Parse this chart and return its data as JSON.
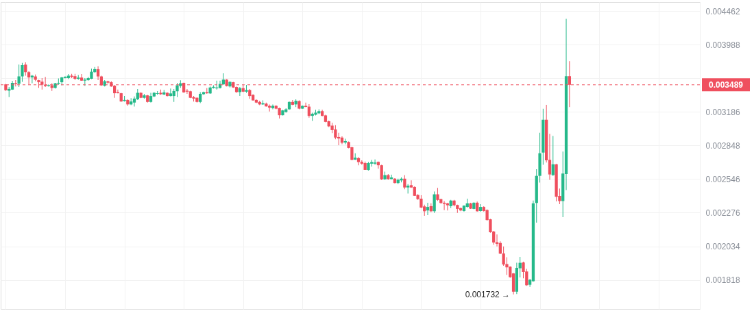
{
  "chart_data": {
    "type": "candlestick",
    "categories": [
      null,
      null,
      null,
      null,
      null,
      null,
      null,
      null,
      null,
      null,
      null,
      null,
      null,
      null,
      null,
      null,
      null,
      null,
      null,
      null,
      null,
      null,
      null,
      null,
      null,
      null,
      null,
      null,
      null,
      null,
      null,
      null,
      null,
      null,
      null,
      null,
      null,
      null,
      null,
      null,
      null,
      null,
      null,
      null,
      null,
      null,
      null,
      null,
      null,
      null,
      null,
      null,
      null,
      null,
      null,
      null,
      null,
      null,
      null,
      null,
      null,
      null,
      null,
      null,
      null,
      null,
      null,
      null,
      null,
      null,
      null,
      null,
      null,
      null,
      null,
      null,
      null,
      null,
      null,
      null,
      null,
      null,
      null,
      null,
      null,
      null,
      null,
      null,
      null,
      null,
      null,
      null,
      null,
      null,
      null,
      null,
      null,
      null,
      null,
      null,
      null,
      null,
      null,
      null,
      null,
      null,
      null,
      null,
      null,
      null,
      null,
      null,
      null,
      null,
      null,
      null,
      null,
      null,
      null,
      null,
      null,
      null,
      null,
      null,
      null,
      null,
      null,
      null,
      null,
      null,
      null,
      null,
      null,
      null,
      null,
      null,
      null,
      null,
      null,
      null,
      null,
      null,
      null,
      null,
      null,
      null,
      null,
      null,
      null,
      null,
      null,
      null,
      null,
      null,
      null,
      null,
      null,
      null,
      null,
      null,
      null,
      null,
      null,
      null,
      null,
      null,
      null,
      null,
      null,
      null,
      null,
      null,
      null,
      null,
      null,
      null,
      null,
      null,
      null,
      null,
      null,
      null,
      null,
      null,
      null,
      null,
      null,
      null,
      null,
      null,
      null,
      null,
      null,
      null,
      null,
      null,
      null,
      null,
      null,
      null,
      null,
      null,
      null,
      null,
      null,
      null,
      null,
      null,
      null,
      null
    ],
    "ohlc": [
      [
        0.003494,
        0.003499,
        0.003419,
        0.003427
      ],
      [
        0.003421,
        0.003463,
        0.003348,
        0.003441
      ],
      [
        0.003434,
        0.003536,
        0.003429,
        0.003512
      ],
      [
        0.003512,
        0.003543,
        0.00347,
        0.003502
      ],
      [
        0.003502,
        0.003732,
        0.003463,
        0.003588
      ],
      [
        0.003588,
        0.003755,
        0.003523,
        0.003726
      ],
      [
        0.003732,
        0.003761,
        0.003597,
        0.00364
      ],
      [
        0.00364,
        0.003651,
        0.003494,
        0.003576
      ],
      [
        0.003576,
        0.003606,
        0.003507,
        0.003597
      ],
      [
        0.003588,
        0.003611,
        0.003531,
        0.003548
      ],
      [
        0.003543,
        0.003548,
        0.003453,
        0.003519
      ],
      [
        0.003526,
        0.003568,
        0.003434,
        0.00349
      ],
      [
        0.00349,
        0.003582,
        0.003463,
        0.003475
      ],
      [
        0.003475,
        0.003494,
        0.003468,
        0.003485
      ],
      [
        0.003483,
        0.003507,
        0.003419,
        0.003453
      ],
      [
        0.003453,
        0.003512,
        0.003446,
        0.003507
      ],
      [
        0.003502,
        0.003563,
        0.00349,
        0.003512
      ],
      [
        0.003519,
        0.003582,
        0.003483,
        0.003576
      ],
      [
        0.003568,
        0.003591,
        0.003563,
        0.003582
      ],
      [
        0.003568,
        0.003617,
        0.003556,
        0.003597
      ],
      [
        0.003597,
        0.003619,
        0.003568,
        0.003582
      ],
      [
        0.003591,
        0.003619,
        0.003543,
        0.00356
      ],
      [
        0.00356,
        0.003606,
        0.003548,
        0.003574
      ],
      [
        0.003574,
        0.003617,
        0.003536,
        0.003538
      ],
      [
        0.003538,
        0.003568,
        0.003478,
        0.00355
      ],
      [
        0.003543,
        0.003582,
        0.003538,
        0.003568
      ],
      [
        0.00356,
        0.003683,
        0.003556,
        0.003645
      ],
      [
        0.00364,
        0.003703,
        0.003631,
        0.003677
      ],
      [
        0.003675,
        0.003712,
        0.003543,
        0.003588
      ],
      [
        0.003588,
        0.003597,
        0.003478,
        0.003483
      ],
      [
        0.003478,
        0.003543,
        0.00347,
        0.003531
      ],
      [
        0.003531,
        0.003538,
        0.003502,
        0.003514
      ],
      [
        0.003519,
        0.003531,
        0.003465,
        0.00347
      ],
      [
        0.003478,
        0.003487,
        0.003341,
        0.003392
      ],
      [
        0.003405,
        0.003434,
        0.00339,
        0.003392
      ],
      [
        0.003392,
        0.003397,
        0.003295,
        0.0033
      ],
      [
        0.003305,
        0.003361,
        0.0033,
        0.003317
      ],
      [
        0.003317,
        0.003324,
        0.003252,
        0.003268
      ],
      [
        0.003268,
        0.003337,
        0.003259,
        0.0033
      ],
      [
        0.003288,
        0.003356,
        0.003244,
        0.003332
      ],
      [
        0.003324,
        0.003439,
        0.003317,
        0.003397
      ],
      [
        0.003397,
        0.003402,
        0.003337,
        0.003341
      ],
      [
        0.003341,
        0.003385,
        0.003332,
        0.003368
      ],
      [
        0.003368,
        0.003373,
        0.003288,
        0.003295
      ],
      [
        0.003295,
        0.003397,
        0.003288,
        0.003361
      ],
      [
        0.003356,
        0.003405,
        0.003348,
        0.003397
      ],
      [
        0.003385,
        0.003417,
        0.003373,
        0.003392
      ],
      [
        0.003397,
        0.003434,
        0.003373,
        0.003381
      ],
      [
        0.003378,
        0.003429,
        0.00337,
        0.003402
      ],
      [
        0.003397,
        0.003402,
        0.003356,
        0.003361
      ],
      [
        0.003361,
        0.003446,
        0.003356,
        0.00339
      ],
      [
        0.003361,
        0.003439,
        0.003295,
        0.003417
      ],
      [
        0.003414,
        0.003512,
        0.003348,
        0.003483
      ],
      [
        0.003475,
        0.003541,
        0.003453,
        0.003507
      ],
      [
        0.003512,
        0.003514,
        0.003397,
        0.003402
      ],
      [
        0.003421,
        0.003439,
        0.003385,
        0.00341
      ],
      [
        0.003414,
        0.003421,
        0.003337,
        0.003341
      ],
      [
        0.003348,
        0.003361,
        0.0033,
        0.003332
      ],
      [
        0.003341,
        0.003346,
        0.003288,
        0.003295
      ],
      [
        0.003295,
        0.003405,
        0.003283,
        0.003385
      ],
      [
        0.003381,
        0.00341,
        0.003373,
        0.003405
      ],
      [
        0.003405,
        0.003451,
        0.003385,
        0.003392
      ],
      [
        0.00339,
        0.00347,
        0.003385,
        0.003458
      ],
      [
        0.003453,
        0.003483,
        0.003446,
        0.003465
      ],
      [
        0.003448,
        0.003538,
        0.003434,
        0.003458
      ],
      [
        0.003453,
        0.003538,
        0.003446,
        0.003499
      ],
      [
        0.003494,
        0.003625,
        0.00349,
        0.00355
      ],
      [
        0.00355,
        0.003556,
        0.00347,
        0.003475
      ],
      [
        0.00347,
        0.003531,
        0.003458,
        0.003523
      ],
      [
        0.003519,
        0.003523,
        0.003453,
        0.003458
      ],
      [
        0.003463,
        0.00347,
        0.003397,
        0.003405
      ],
      [
        0.003405,
        0.003463,
        0.003361,
        0.003451
      ],
      [
        0.003451,
        0.00349,
        0.003405,
        0.00341
      ],
      [
        0.00341,
        0.003487,
        0.003397,
        0.003429
      ],
      [
        0.003429,
        0.003439,
        0.00333,
        0.003361
      ],
      [
        0.003373,
        0.003381,
        0.003308,
        0.003312
      ],
      [
        0.003317,
        0.003324,
        0.003283,
        0.003288
      ],
      [
        0.003295,
        0.003308,
        0.003259,
        0.003268
      ],
      [
        0.003268,
        0.003312,
        0.003264,
        0.003281
      ],
      [
        0.003276,
        0.003288,
        0.003244,
        0.003246
      ],
      [
        0.003252,
        0.003268,
        0.003191,
        0.003232
      ],
      [
        0.003227,
        0.003268,
        0.003215,
        0.003252
      ],
      [
        0.003252,
        0.003259,
        0.003215,
        0.003222
      ],
      [
        0.003227,
        0.003232,
        0.003118,
        0.003152
      ],
      [
        0.003152,
        0.003208,
        0.00315,
        0.003203
      ],
      [
        0.003186,
        0.003227,
        0.003179,
        0.003215
      ],
      [
        0.003215,
        0.0033,
        0.00321,
        0.003295
      ],
      [
        0.003295,
        0.003317,
        0.003259,
        0.003264
      ],
      [
        0.003268,
        0.003324,
        0.003239,
        0.003308
      ],
      [
        0.003305,
        0.003312,
        0.003215,
        0.003222
      ],
      [
        0.003222,
        0.003256,
        0.00322,
        0.003252
      ],
      [
        0.003252,
        0.003288,
        0.003237,
        0.003241
      ],
      [
        0.003244,
        0.003271,
        0.003127,
        0.003145
      ],
      [
        0.003145,
        0.003179,
        0.003093,
        0.003168
      ],
      [
        0.003157,
        0.00321,
        0.00315,
        0.003179
      ],
      [
        0.003172,
        0.003215,
        0.003164,
        0.003195
      ],
      [
        0.003195,
        0.00321,
        0.003141,
        0.003145
      ],
      [
        0.00315,
        0.003157,
        0.003078,
        0.003083
      ],
      [
        0.003089,
        0.003096,
        0.003029,
        0.003037
      ],
      [
        0.003044,
        0.003073,
        0.00297,
        0.002999
      ],
      [
        0.003006,
        0.003049,
        0.002909,
        0.002925
      ],
      [
        0.002931,
        0.002972,
        0.002851,
        0.002916
      ],
      [
        0.002925,
        0.002938,
        0.002861,
        0.002875
      ],
      [
        0.002877,
        0.002914,
        0.002861,
        0.002891
      ],
      [
        0.002882,
        0.002887,
        0.002822,
        0.002826
      ],
      [
        0.002832,
        0.002836,
        0.002711,
        0.002715
      ],
      [
        0.002717,
        0.002776,
        0.002715,
        0.002735
      ],
      [
        0.002731,
        0.002741,
        0.002667,
        0.002695
      ],
      [
        0.002697,
        0.002711,
        0.002671,
        0.002681
      ],
      [
        0.002687,
        0.002701,
        0.002625,
        0.002626
      ],
      [
        0.002625,
        0.002695,
        0.00262,
        0.002687
      ],
      [
        0.002681,
        0.002715,
        0.002655,
        0.002695
      ],
      [
        0.002681,
        0.002719,
        0.002671,
        0.002691
      ],
      [
        0.002697,
        0.002701,
        0.002637,
        0.002667
      ],
      [
        0.002667,
        0.002671,
        0.002539,
        0.002544
      ],
      [
        0.002544,
        0.00261,
        0.00254,
        0.00258
      ],
      [
        0.00258,
        0.00259,
        0.00254,
        0.002546
      ],
      [
        0.002546,
        0.002584,
        0.002544,
        0.00256
      ],
      [
        0.00255,
        0.002554,
        0.002509,
        0.002513
      ],
      [
        0.002513,
        0.00255,
        0.002504,
        0.00254
      ],
      [
        0.002535,
        0.00256,
        0.002518,
        0.00255
      ],
      [
        0.00255,
        0.00258,
        0.002462,
        0.002476
      ],
      [
        0.002476,
        0.002504,
        0.002426,
        0.002491
      ],
      [
        0.002495,
        0.002535,
        0.002473,
        0.002476
      ],
      [
        0.00248,
        0.002485,
        0.002407,
        0.002408
      ],
      [
        0.002415,
        0.002421,
        0.002375,
        0.002381
      ],
      [
        0.002385,
        0.002412,
        0.002311,
        0.002315
      ],
      [
        0.002324,
        0.002338,
        0.002253,
        0.002287
      ],
      [
        0.002293,
        0.002352,
        0.002258,
        0.00232
      ],
      [
        0.002326,
        0.002348,
        0.00228,
        0.002287
      ],
      [
        0.002287,
        0.002443,
        0.002275,
        0.00242
      ],
      [
        0.00242,
        0.002472,
        0.002368,
        0.002375
      ],
      [
        0.002381,
        0.002385,
        0.002344,
        0.002351
      ],
      [
        0.002353,
        0.002366,
        0.002296,
        0.002344
      ],
      [
        0.002348,
        0.002353,
        0.002293,
        0.002333
      ],
      [
        0.002326,
        0.002375,
        0.002311,
        0.00237
      ],
      [
        0.00237,
        0.002375,
        0.002324,
        0.002333
      ],
      [
        0.002335,
        0.002338,
        0.002275,
        0.002305
      ],
      [
        0.002311,
        0.002315,
        0.002287,
        0.002293
      ],
      [
        0.002289,
        0.002333,
        0.002283,
        0.00233
      ],
      [
        0.00232,
        0.002385,
        0.002315,
        0.002348
      ],
      [
        0.002348,
        0.002353,
        0.002305,
        0.002307
      ],
      [
        0.002305,
        0.002357,
        0.002302,
        0.002353
      ],
      [
        0.002353,
        0.002362,
        0.002283,
        0.002287
      ],
      [
        0.002289,
        0.002342,
        0.002283,
        0.00232
      ],
      [
        0.00232,
        0.002326,
        0.002283,
        0.002289
      ],
      [
        0.002296,
        0.002302,
        0.002215,
        0.002221
      ],
      [
        0.002226,
        0.002229,
        0.002129,
        0.002132
      ],
      [
        0.002137,
        0.002142,
        0.002045,
        0.00206
      ],
      [
        0.002062,
        0.002116,
        0.002033,
        0.002051
      ],
      [
        0.002057,
        0.002068,
        0.001982,
        0.001985
      ],
      [
        0.001986,
        0.002033,
        0.001906,
        0.001914
      ],
      [
        0.001917,
        0.001961,
        0.001849,
        0.001896
      ],
      [
        0.0019,
        0.001903,
        0.001831,
        0.001835
      ],
      [
        0.001858,
        0.001861,
        0.001732,
        0.001748
      ],
      [
        0.001748,
        0.001926,
        0.001734,
        0.001893
      ],
      [
        0.00189,
        0.001964,
        0.001833,
        0.001925
      ],
      [
        0.001927,
        0.001932,
        0.001828,
        0.001867
      ],
      [
        0.00187,
        0.001886,
        0.001782,
        0.001786
      ],
      [
        0.001789,
        0.001824,
        0.001776,
        0.001819
      ],
      [
        0.00181,
        0.00237,
        0.001807,
        0.002348
      ],
      [
        0.002351,
        0.002631,
        0.002202,
        0.002574
      ],
      [
        0.002574,
        0.002972,
        0.002517,
        0.002776
      ],
      [
        0.002782,
        0.00322,
        0.002671,
        0.003105
      ],
      [
        0.003105,
        0.003264,
        0.002691,
        0.002711
      ],
      [
        0.002715,
        0.002961,
        0.00254,
        0.002586
      ],
      [
        0.00258,
        0.002941,
        0.002574,
        0.002675
      ],
      [
        0.002675,
        0.002679,
        0.002364,
        0.0024
      ],
      [
        0.002407,
        0.002467,
        0.002342,
        0.002366
      ],
      [
        0.002366,
        0.002792,
        0.002242,
        0.002594
      ],
      [
        0.00259,
        0.004349,
        0.002454,
        0.003591
      ],
      [
        0.003591,
        0.003775,
        0.003239,
        0.003489
      ],
      null,
      null,
      null,
      null,
      null,
      null,
      null,
      null,
      null,
      null,
      null,
      null,
      null,
      null,
      null,
      null,
      null,
      null,
      null,
      null,
      null,
      null,
      null,
      null,
      null,
      null,
      null,
      null,
      null,
      null,
      null,
      null,
      null,
      null,
      null,
      null,
      null,
      null
    ],
    "colors": [
      "#ef4f5e",
      "#26b98a",
      "#26b98a",
      "#ef4f5e",
      "#26b98a",
      "#26b98a",
      "#ef4f5e",
      "#ef4f5e",
      "#26b98a",
      "#ef4f5e",
      "#ef4f5e",
      "#ef4f5e",
      "#ef4f5e",
      "#26b98a",
      "#ef4f5e",
      "#26b98a",
      "#26b98a",
      "#26b98a",
      "#26b98a",
      "#26b98a",
      "#ef4f5e",
      "#ef4f5e",
      "#26b98a",
      "#ef4f5e",
      "#26b98a",
      "#26b98a",
      "#26b98a",
      "#26b98a",
      "#ef4f5e",
      "#ef4f5e",
      "#26b98a",
      "#ef4f5e",
      "#ef4f5e",
      "#ef4f5e",
      "#ef4f5e",
      "#ef4f5e",
      "#26b98a",
      "#ef4f5e",
      "#26b98a",
      "#26b98a",
      "#26b98a",
      "#ef4f5e",
      "#26b98a",
      "#ef4f5e",
      "#26b98a",
      "#26b98a",
      "#26b98a",
      "#ef4f5e",
      "#26b98a",
      "#ef4f5e",
      "#26b98a",
      "#26b98a",
      "#26b98a",
      "#26b98a",
      "#ef4f5e",
      "#ef4f5e",
      "#ef4f5e",
      "#ef4f5e",
      "#ef4f5e",
      "#26b98a",
      "#26b98a",
      "#ef4f5e",
      "#26b98a",
      "#26b98a",
      "#26b98a",
      "#26b98a",
      "#26b98a",
      "#ef4f5e",
      "#26b98a",
      "#ef4f5e",
      "#ef4f5e",
      "#26b98a",
      "#ef4f5e",
      "#26b98a",
      "#ef4f5e",
      "#ef4f5e",
      "#ef4f5e",
      "#ef4f5e",
      "#26b98a",
      "#ef4f5e",
      "#ef4f5e",
      "#26b98a",
      "#ef4f5e",
      "#ef4f5e",
      "#26b98a",
      "#26b98a",
      "#26b98a",
      "#ef4f5e",
      "#26b98a",
      "#ef4f5e",
      "#26b98a",
      "#ef4f5e",
      "#ef4f5e",
      "#26b98a",
      "#26b98a",
      "#26b98a",
      "#ef4f5e",
      "#ef4f5e",
      "#ef4f5e",
      "#ef4f5e",
      "#ef4f5e",
      "#ef4f5e",
      "#ef4f5e",
      "#26b98a",
      "#ef4f5e",
      "#ef4f5e",
      "#26b98a",
      "#ef4f5e",
      "#ef4f5e",
      "#ef4f5e",
      "#26b98a",
      "#26b98a",
      "#26b98a",
      "#ef4f5e",
      "#ef4f5e",
      "#26b98a",
      "#ef4f5e",
      "#26b98a",
      "#ef4f5e",
      "#26b98a",
      "#26b98a",
      "#ef4f5e",
      "#26b98a",
      "#ef4f5e",
      "#ef4f5e",
      "#ef4f5e",
      "#ef4f5e",
      "#ef4f5e",
      "#26b98a",
      "#ef4f5e",
      "#26b98a",
      "#ef4f5e",
      "#ef4f5e",
      "#ef4f5e",
      "#ef4f5e",
      "#26b98a",
      "#ef4f5e",
      "#ef4f5e",
      "#ef4f5e",
      "#26b98a",
      "#26b98a",
      "#ef4f5e",
      "#26b98a",
      "#ef4f5e",
      "#26b98a",
      "#ef4f5e",
      "#ef4f5e",
      "#ef4f5e",
      "#ef4f5e",
      "#ef4f5e",
      "#ef4f5e",
      "#ef4f5e",
      "#ef4f5e",
      "#ef4f5e",
      "#ef4f5e",
      "#26b98a",
      "#26b98a",
      "#ef4f5e",
      "#ef4f5e",
      "#26b98a",
      "#26b98a",
      "#26b98a",
      "#26b98a",
      "#26b98a",
      "#ef4f5e",
      "#ef4f5e",
      "#26b98a",
      "#ef4f5e",
      "#ef4f5e",
      "#26b98a",
      "#26b98a",
      "#ef4f5e",
      null,
      null,
      null,
      null,
      null,
      null,
      null,
      null,
      null,
      null,
      null,
      null,
      null,
      null,
      null,
      null,
      null,
      null,
      null,
      null,
      null,
      null,
      null,
      null,
      null,
      null,
      null,
      null,
      null,
      null,
      null,
      null,
      null,
      null,
      null,
      null,
      null,
      null
    ],
    "log": true,
    "ylim": [
      0.00165,
      0.0046
    ],
    "yticks": [
      0.001818,
      0.002034,
      0.002276,
      0.002546,
      0.002848,
      0.003186,
      {
        "value": 0.003565,
        "label": null
      },
      0.003988,
      0.004462
    ],
    "grid": true,
    "tick_labels": "y",
    "ref_lines": [
      {
        "axis": "y",
        "value": 0.003489,
        "label": "0.003489",
        "color": "#ef4f5e",
        "line_style": "dashed"
      }
    ],
    "annotations": [
      "0.001732 →"
    ]
  }
}
